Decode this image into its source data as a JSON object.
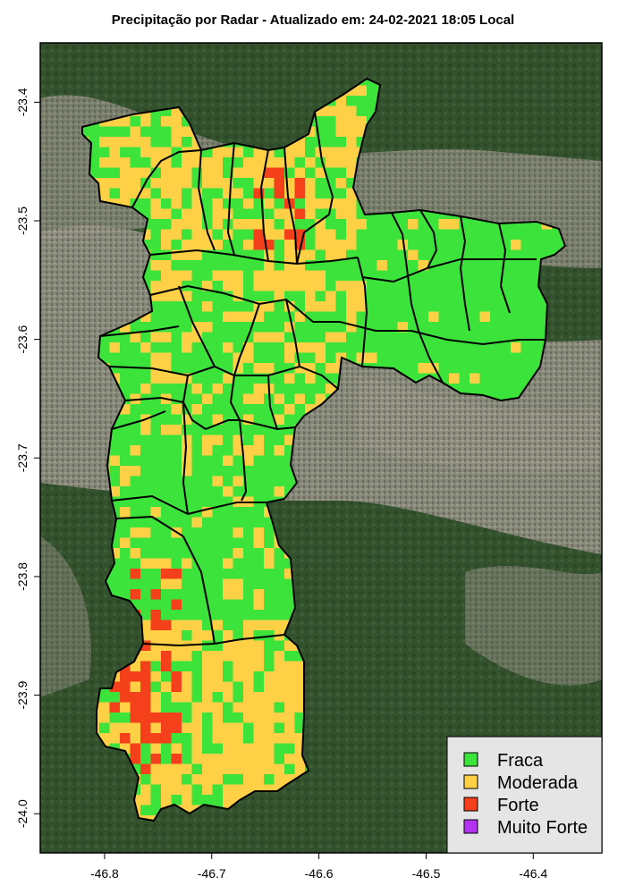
{
  "title": "Precipitação por Radar - Atualizado em: 24-02-2021 18:05 Local",
  "x_axis": {
    "ticks": [
      {
        "value": -46.8,
        "label": "-46.8"
      },
      {
        "value": -46.7,
        "label": "-46.7"
      },
      {
        "value": -46.6,
        "label": "-46.6"
      },
      {
        "value": -46.5,
        "label": "-46.5"
      },
      {
        "value": -46.4,
        "label": "-46.4"
      }
    ]
  },
  "y_axis": {
    "ticks": [
      {
        "value": -23.4,
        "label": "-23.4"
      },
      {
        "value": -23.5,
        "label": "-23.5"
      },
      {
        "value": -23.6,
        "label": "-23.6"
      },
      {
        "value": -23.7,
        "label": "-23.7"
      },
      {
        "value": -23.8,
        "label": "-23.8"
      },
      {
        "value": -23.9,
        "label": "-23.9"
      },
      {
        "value": -24.0,
        "label": "-24.0"
      }
    ]
  },
  "extent": {
    "lon_min": -46.86,
    "lon_max": -46.336,
    "lat_min": -24.033,
    "lat_max": -23.35
  },
  "legend": {
    "position": "bottom-right",
    "items": [
      {
        "label": "Fraca",
        "color": "#3be33b"
      },
      {
        "label": "Moderada",
        "color": "#fdd046"
      },
      {
        "label": "Forte",
        "color": "#f5401c"
      },
      {
        "label": "Muito Forte",
        "color": "#b234ee"
      }
    ]
  },
  "colors": {
    "background_satellite": "#3c5a34",
    "urban": "#8d8b7f",
    "boundary": "#000000"
  },
  "heavy_rain_zones": [
    {
      "name": "north-central",
      "lon": [
        -46.67,
        -46.62
      ],
      "lat": [
        -23.44,
        -23.52
      ]
    },
    {
      "name": "south",
      "lon": [
        -46.8,
        -46.73
      ],
      "lat": [
        -23.79,
        -23.96
      ]
    }
  ]
}
